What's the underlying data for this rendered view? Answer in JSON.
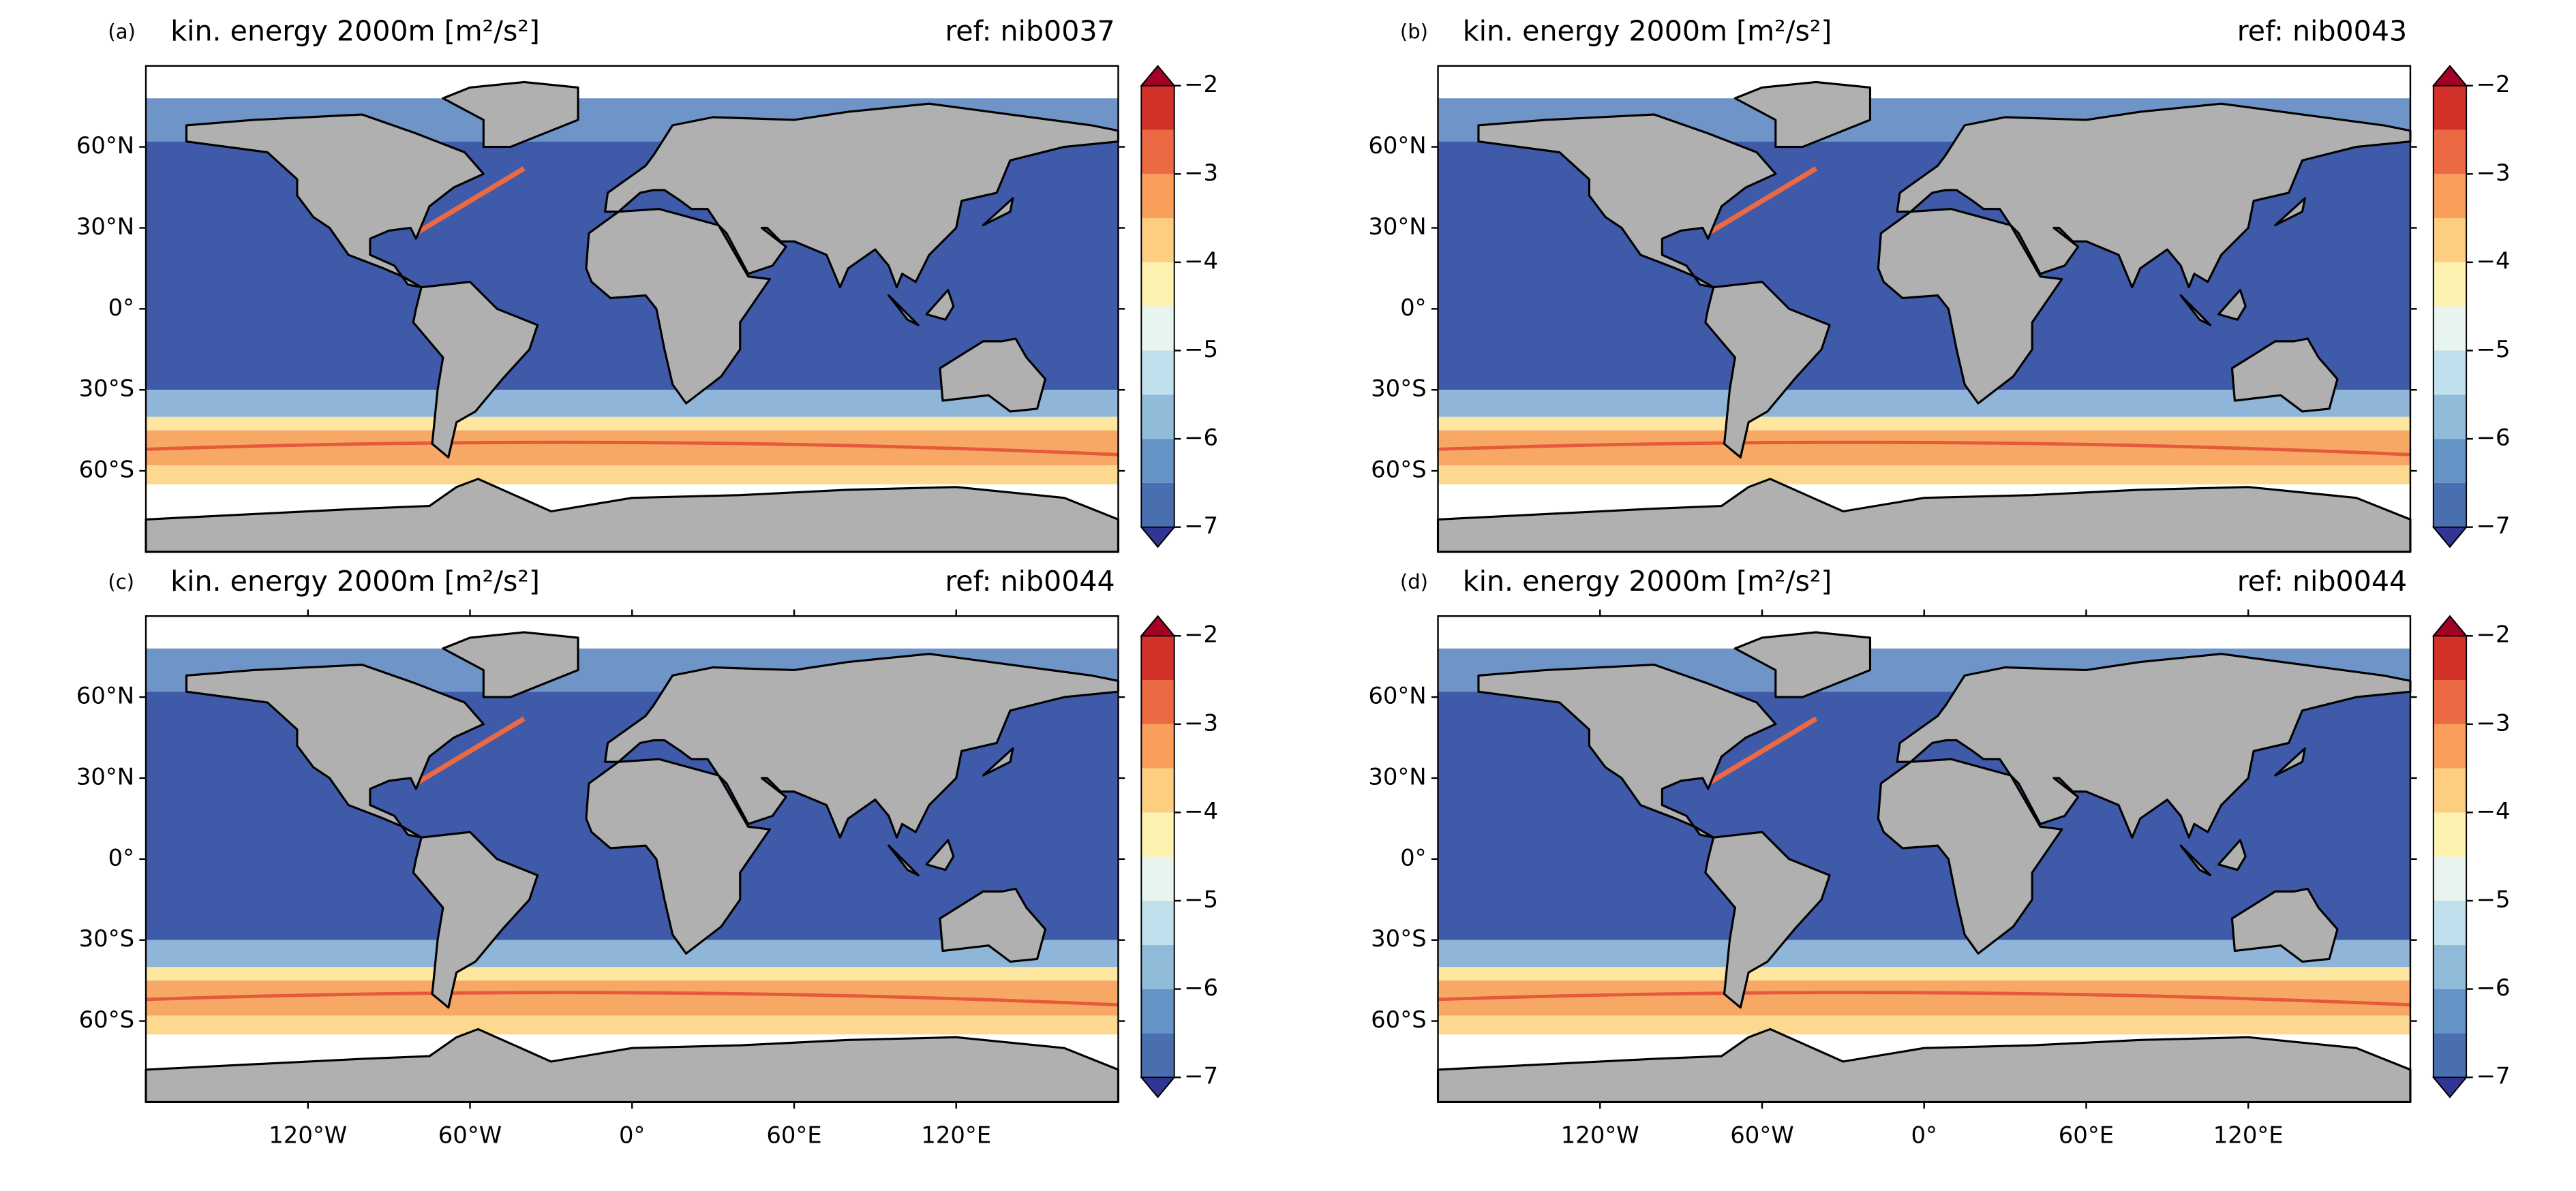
{
  "chart_data": [
    {
      "type": "map",
      "label": "(a)",
      "title": "kin. energy 2000m [m²/s²]",
      "ref": "ref: nib0037",
      "xlim": [
        -180,
        180
      ],
      "ylim": [
        -90,
        90
      ],
      "yticks": [
        {
          "value": 60,
          "label": "60°N"
        },
        {
          "value": 30,
          "label": "30°N"
        },
        {
          "value": 0,
          "label": "0°"
        },
        {
          "value": -30,
          "label": "30°S"
        },
        {
          "value": -60,
          "label": "60°S"
        }
      ],
      "colorbar": {
        "levels": [
          -7,
          -6.5,
          -6,
          -5.5,
          -5,
          -4.5,
          -4,
          -3.5,
          -3,
          -2.5,
          -2
        ],
        "colors": [
          "#4a6fb0",
          "#6493c5",
          "#90bcd9",
          "#bfe0ec",
          "#e8f5ef",
          "#fdf1b0",
          "#fdcd80",
          "#f99e5b",
          "#ec6a43",
          "#d3322a"
        ],
        "under": "#313695",
        "over": "#a50026",
        "ticks": [
          {
            "value": -2,
            "label": "−2"
          },
          {
            "value": -3,
            "label": "−3"
          },
          {
            "value": -4,
            "label": "−4"
          },
          {
            "value": -5,
            "label": "−5"
          },
          {
            "value": -6,
            "label": "−6"
          },
          {
            "value": -7,
            "label": "−7"
          }
        ]
      }
    },
    {
      "type": "map",
      "label": "(b)",
      "title": "kin. energy 2000m [m²/s²]",
      "ref": "ref: nib0043",
      "xlim": [
        -180,
        180
      ],
      "ylim": [
        -90,
        90
      ],
      "yticks": [
        {
          "value": 60,
          "label": "60°N"
        },
        {
          "value": 30,
          "label": "30°N"
        },
        {
          "value": 0,
          "label": "0°"
        },
        {
          "value": -30,
          "label": "30°S"
        },
        {
          "value": -60,
          "label": "60°S"
        }
      ],
      "colorbar": {
        "levels": [
          -7,
          -6.5,
          -6,
          -5.5,
          -5,
          -4.5,
          -4,
          -3.5,
          -3,
          -2.5,
          -2
        ],
        "colors": [
          "#4a6fb0",
          "#6493c5",
          "#90bcd9",
          "#bfe0ec",
          "#e8f5ef",
          "#fdf1b0",
          "#fdcd80",
          "#f99e5b",
          "#ec6a43",
          "#d3322a"
        ],
        "under": "#313695",
        "over": "#a50026",
        "ticks": [
          {
            "value": -2,
            "label": "−2"
          },
          {
            "value": -3,
            "label": "−3"
          },
          {
            "value": -4,
            "label": "−4"
          },
          {
            "value": -5,
            "label": "−5"
          },
          {
            "value": -6,
            "label": "−6"
          },
          {
            "value": -7,
            "label": "−7"
          }
        ]
      }
    },
    {
      "type": "map",
      "label": "(c)",
      "title": "kin. energy 2000m [m²/s²]",
      "ref": "ref: nib0044",
      "xlim": [
        -180,
        180
      ],
      "ylim": [
        -90,
        90
      ],
      "xticks": [
        {
          "value": -120,
          "label": "120°W"
        },
        {
          "value": -60,
          "label": "60°W"
        },
        {
          "value": 0,
          "label": "0°"
        },
        {
          "value": 60,
          "label": "60°E"
        },
        {
          "value": 120,
          "label": "120°E"
        }
      ],
      "yticks": [
        {
          "value": 60,
          "label": "60°N"
        },
        {
          "value": 30,
          "label": "30°N"
        },
        {
          "value": 0,
          "label": "0°"
        },
        {
          "value": -30,
          "label": "30°S"
        },
        {
          "value": -60,
          "label": "60°S"
        }
      ],
      "colorbar": {
        "levels": [
          -7,
          -6.5,
          -6,
          -5.5,
          -5,
          -4.5,
          -4,
          -3.5,
          -3,
          -2.5,
          -2
        ],
        "colors": [
          "#4a6fb0",
          "#6493c5",
          "#90bcd9",
          "#bfe0ec",
          "#e8f5ef",
          "#fdf1b0",
          "#fdcd80",
          "#f99e5b",
          "#ec6a43",
          "#d3322a"
        ],
        "under": "#313695",
        "over": "#a50026",
        "ticks": [
          {
            "value": -2,
            "label": "−2"
          },
          {
            "value": -3,
            "label": "−3"
          },
          {
            "value": -4,
            "label": "−4"
          },
          {
            "value": -5,
            "label": "−5"
          },
          {
            "value": -6,
            "label": "−6"
          },
          {
            "value": -7,
            "label": "−7"
          }
        ]
      }
    },
    {
      "type": "map",
      "label": "(d)",
      "title": "kin. energy 2000m [m²/s²]",
      "ref": "ref: nib0044",
      "xlim": [
        -180,
        180
      ],
      "ylim": [
        -90,
        90
      ],
      "xticks": [
        {
          "value": -120,
          "label": "120°W"
        },
        {
          "value": -60,
          "label": "60°W"
        },
        {
          "value": 0,
          "label": "0°"
        },
        {
          "value": 60,
          "label": "60°E"
        },
        {
          "value": 120,
          "label": "120°E"
        }
      ],
      "yticks": [
        {
          "value": 60,
          "label": "60°N"
        },
        {
          "value": 30,
          "label": "30°N"
        },
        {
          "value": 0,
          "label": "0°"
        },
        {
          "value": -30,
          "label": "30°S"
        },
        {
          "value": -60,
          "label": "60°S"
        }
      ],
      "colorbar": {
        "levels": [
          -7,
          -6.5,
          -6,
          -5.5,
          -5,
          -4.5,
          -4,
          -3.5,
          -3,
          -2.5,
          -2
        ],
        "colors": [
          "#4a6fb0",
          "#6493c5",
          "#90bcd9",
          "#bfe0ec",
          "#e8f5ef",
          "#fdf1b0",
          "#fdcd80",
          "#f99e5b",
          "#ec6a43",
          "#d3322a"
        ],
        "under": "#313695",
        "over": "#a50026",
        "ticks": [
          {
            "value": -2,
            "label": "−2"
          },
          {
            "value": -3,
            "label": "−3"
          },
          {
            "value": -4,
            "label": "−4"
          },
          {
            "value": -5,
            "label": "−5"
          },
          {
            "value": -6,
            "label": "−6"
          },
          {
            "value": -7,
            "label": "−7"
          }
        ]
      }
    }
  ]
}
